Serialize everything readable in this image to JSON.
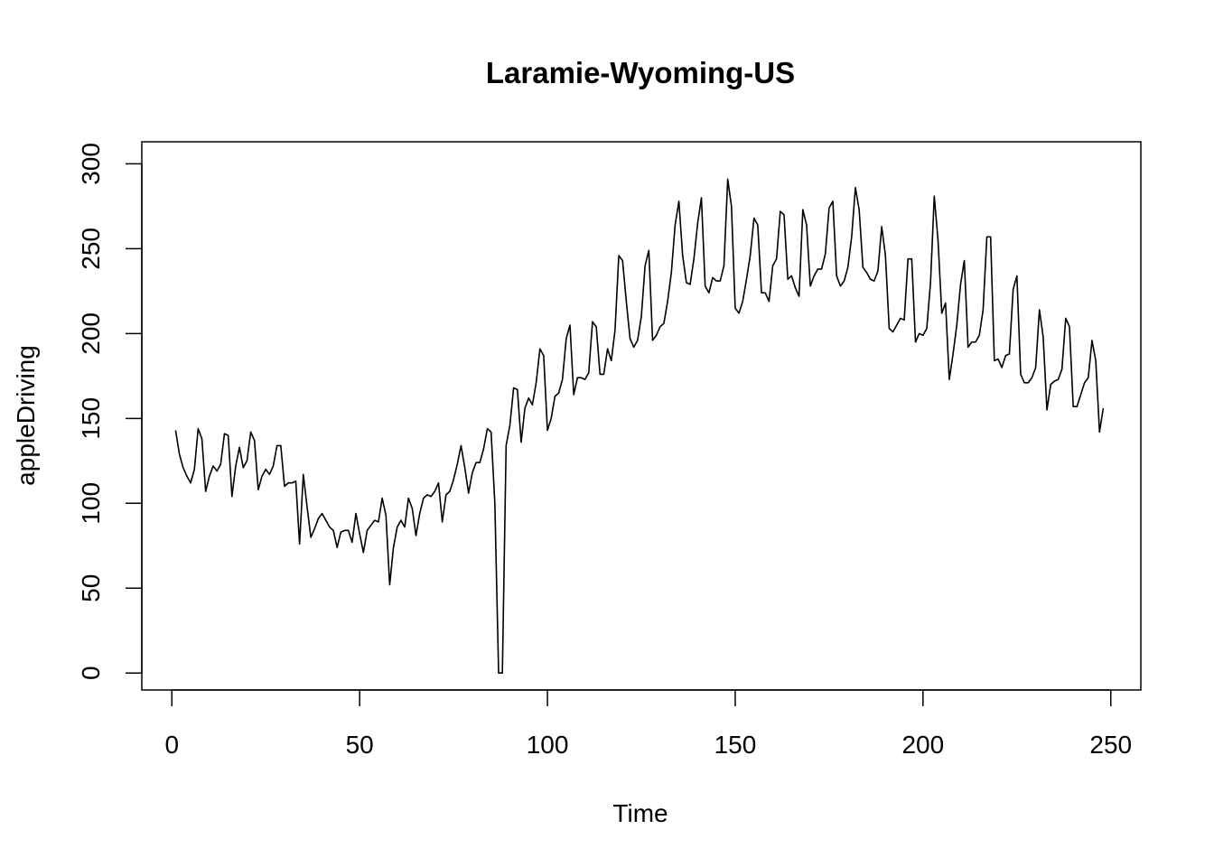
{
  "chart_data": {
    "type": "line",
    "title": "Laramie-Wyoming-US",
    "xlabel": "Time",
    "ylabel": "appleDriving",
    "xlim": [
      -8,
      258
    ],
    "ylim": [
      -10,
      313
    ],
    "x_ticks": [
      0,
      50,
      100,
      150,
      200,
      250
    ],
    "y_ticks": [
      0,
      50,
      100,
      150,
      200,
      250,
      300
    ],
    "grid": false,
    "legend": "none",
    "line_color": "#000000",
    "series": [
      {
        "x_start": 1,
        "values": [
          143,
          129,
          121,
          116,
          112,
          120,
          144,
          138,
          107,
          116,
          122,
          119,
          123,
          141,
          140,
          104,
          122,
          133,
          121,
          125,
          142,
          137,
          108,
          116,
          120,
          117,
          122,
          134,
          134,
          110,
          112,
          112,
          113,
          76,
          117,
          98,
          80,
          85,
          91,
          94,
          90,
          86,
          84,
          74,
          83,
          84,
          84,
          77,
          94,
          82,
          71,
          84,
          87,
          90,
          89,
          103,
          93,
          52,
          74,
          86,
          90,
          86,
          103,
          97,
          81,
          94,
          103,
          105,
          104,
          107,
          112,
          89,
          105,
          107,
          114,
          123,
          134,
          121,
          106,
          118,
          124,
          124,
          132,
          144,
          142,
          100,
          0,
          0,
          134,
          146,
          168,
          167,
          136,
          156,
          162,
          158,
          171,
          191,
          187,
          143,
          150,
          163,
          165,
          173,
          197,
          205,
          164,
          174,
          174,
          173,
          177,
          207,
          204,
          176,
          176,
          191,
          184,
          202,
          246,
          243,
          219,
          197,
          192,
          196,
          210,
          240,
          249,
          196,
          199,
          204,
          206,
          219,
          236,
          264,
          278,
          246,
          230,
          229,
          244,
          265,
          280,
          228,
          224,
          233,
          231,
          231,
          240,
          291,
          275,
          215,
          212,
          219,
          232,
          246,
          268,
          264,
          224,
          224,
          219,
          240,
          244,
          272,
          270,
          232,
          234,
          227,
          222,
          273,
          264,
          228,
          234,
          238,
          238,
          247,
          274,
          278,
          234,
          228,
          231,
          239,
          257,
          286,
          273,
          239,
          236,
          232,
          231,
          237,
          263,
          246,
          203,
          201,
          205,
          209,
          208,
          244,
          244,
          195,
          200,
          199,
          203,
          230,
          281,
          255,
          212,
          218,
          173,
          188,
          205,
          229,
          243,
          192,
          195,
          195,
          199,
          214,
          257,
          257,
          184,
          185,
          180,
          187,
          188,
          226,
          234,
          176,
          171,
          171,
          174,
          180,
          214,
          198,
          155,
          170,
          172,
          173,
          179,
          209,
          204,
          157,
          157,
          164,
          171,
          174,
          196,
          184,
          142,
          156
        ]
      }
    ]
  }
}
